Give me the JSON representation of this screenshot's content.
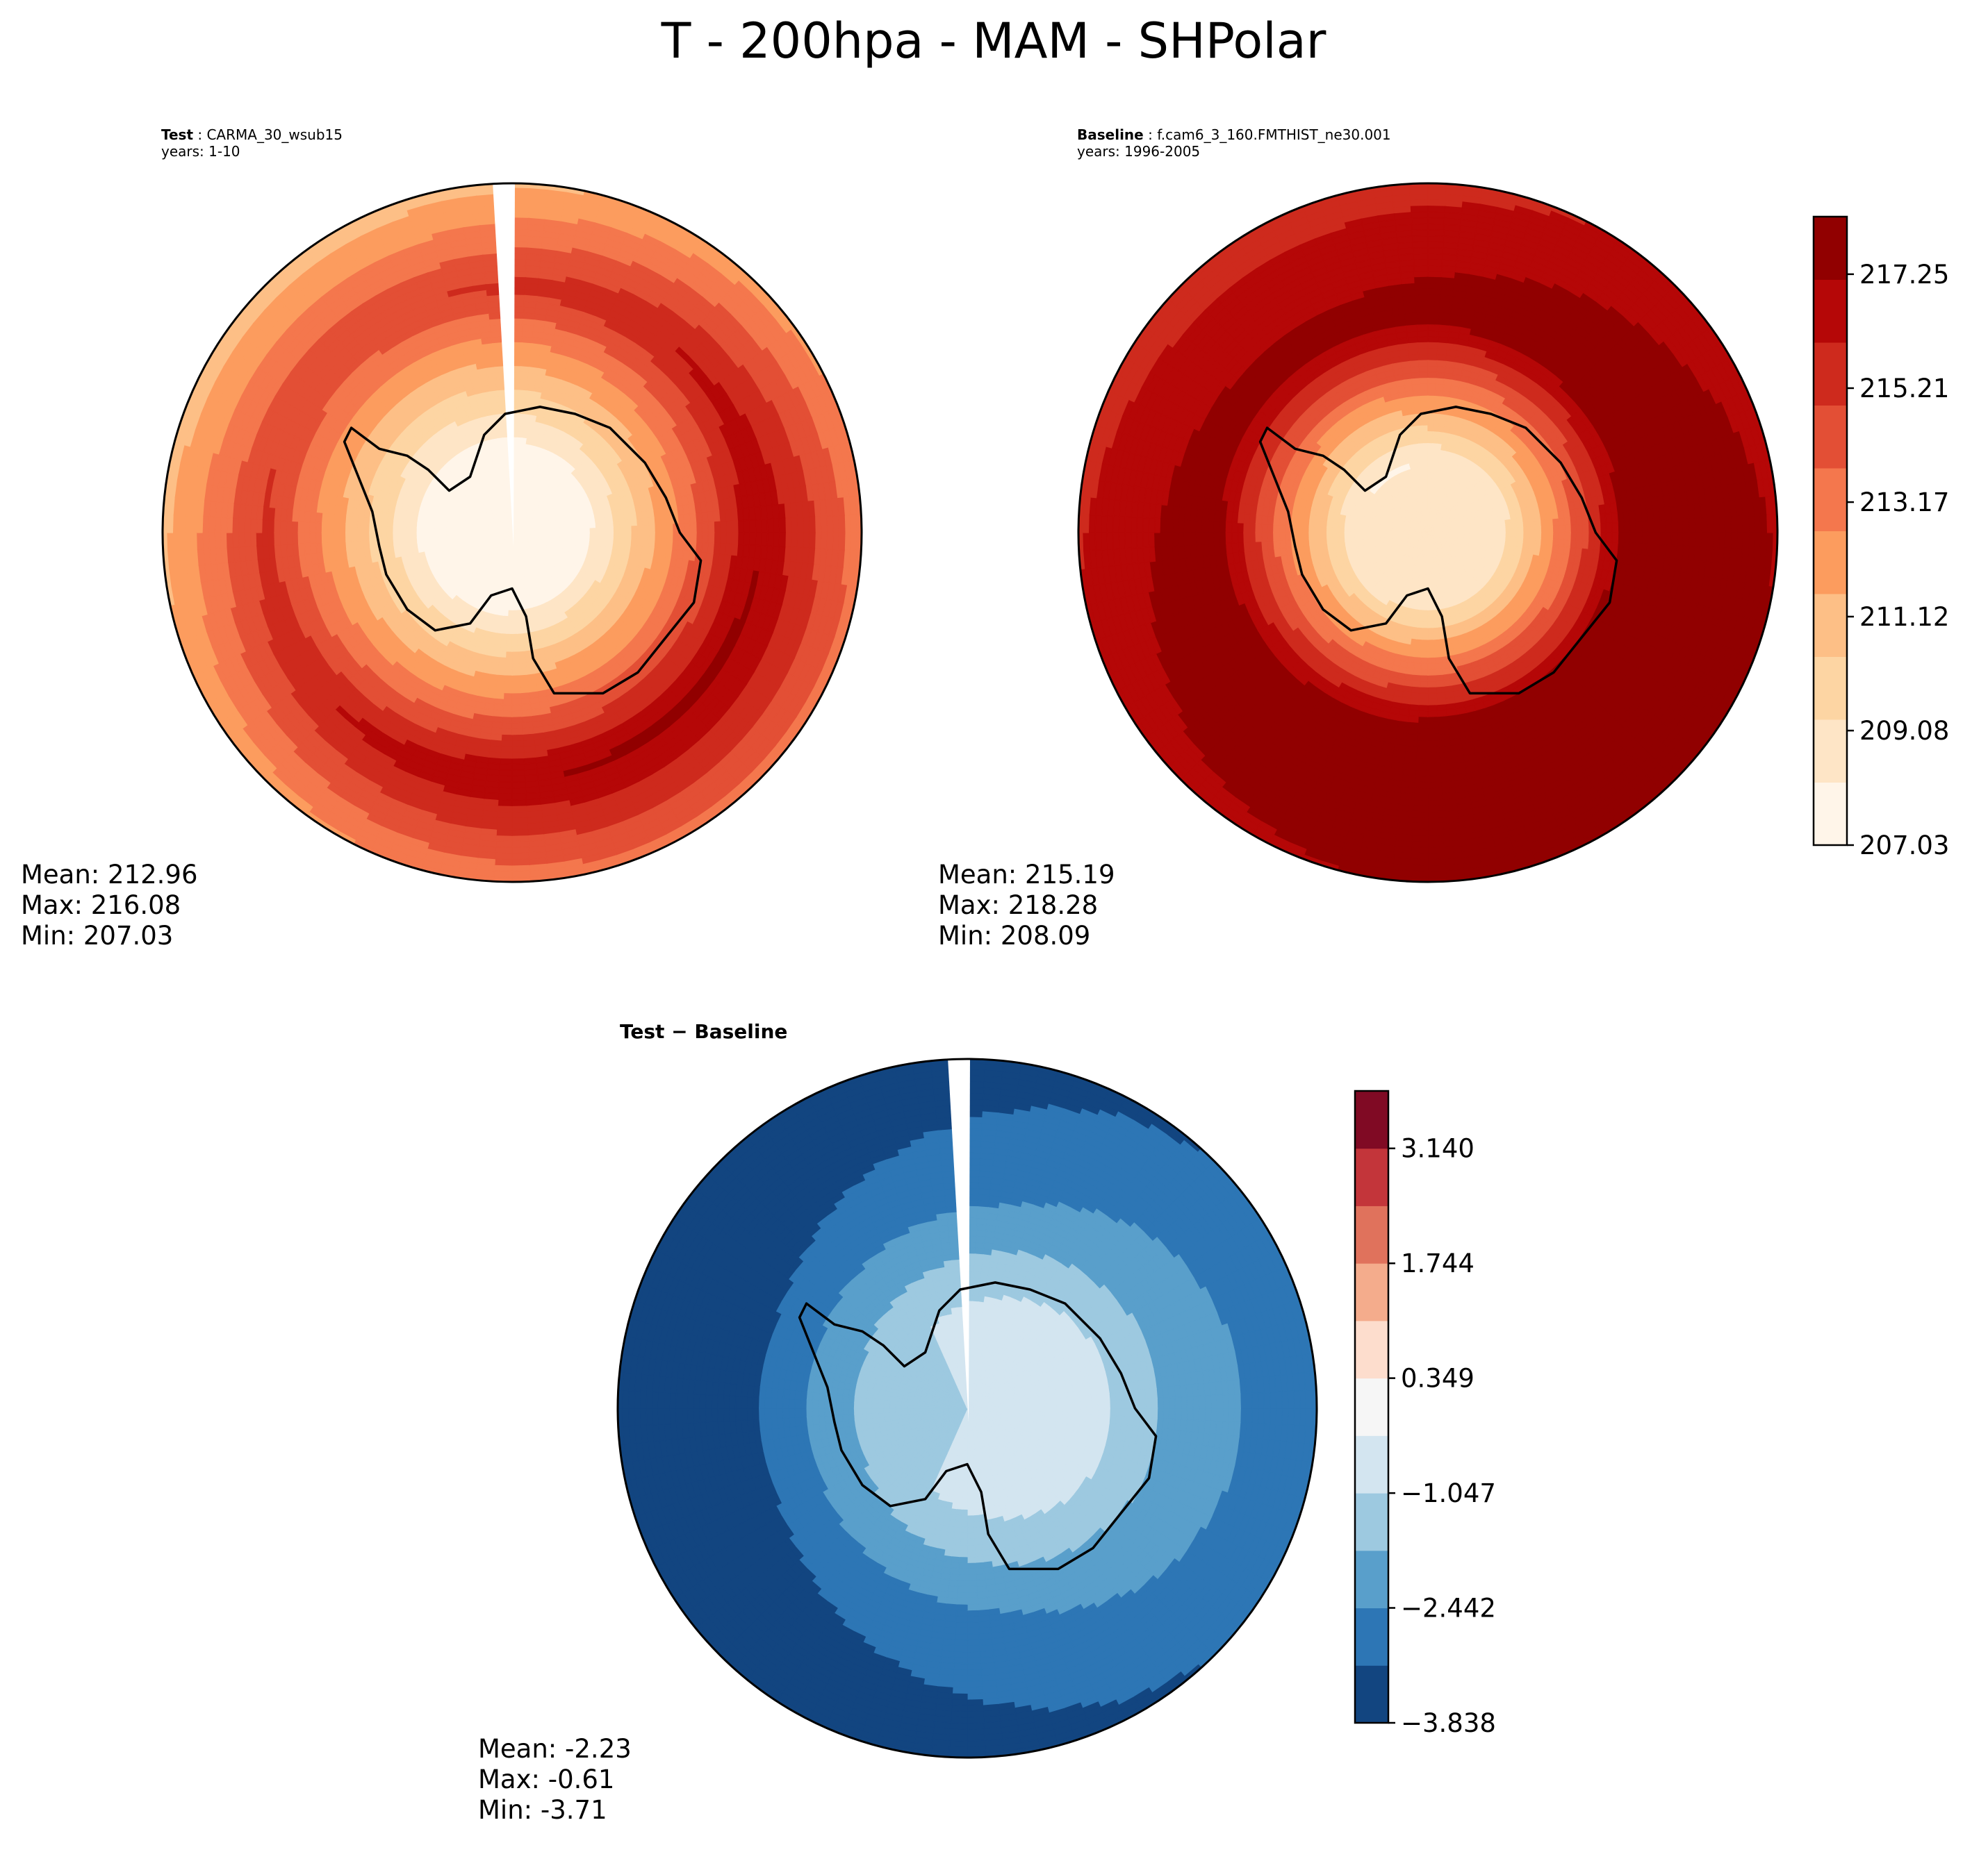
{
  "figure": {
    "title": "T - 200hpa - MAM - SHPolar"
  },
  "panels": {
    "test": {
      "label": "Test",
      "case": "CARMA_30_wsub15",
      "years": "years: 1-10",
      "stats": {
        "mean": "Mean: 212.96",
        "max": "Max: 216.08",
        "min": "Min: 207.03"
      }
    },
    "baseline": {
      "label": "Baseline",
      "case": "f.cam6_3_160.FMTHIST_ne30.001",
      "years": "years: 1996-2005",
      "stats": {
        "mean": "Mean: 215.19",
        "max": "Max: 218.28",
        "min": "Min: 208.09"
      }
    },
    "diff": {
      "title": "Test − Baseline",
      "stats": {
        "mean": "Mean: -2.23",
        "max": "Max: -0.61",
        "min": "Min: -3.71"
      }
    }
  },
  "chart_data": [
    {
      "type": "heatmap",
      "title": "Test : CARMA_30_wsub15",
      "projection": "south-polar-stereographic",
      "variable": "T",
      "level": "200hpa",
      "season": "MAM",
      "mean": 212.96,
      "max": 216.08,
      "min": 207.03,
      "colormap": "OrRd-like",
      "levels": [
        207.03,
        208.05,
        209.08,
        210.1,
        211.12,
        212.15,
        213.17,
        214.19,
        215.21,
        216.23,
        217.25,
        218.28
      ],
      "colorbar_ticks": [
        "207.03",
        "209.08",
        "211.12",
        "213.17",
        "215.21",
        "217.25"
      ],
      "note": "cold pole (~207) over Antarctic interior, warm ring (~215-216) near 60S"
    },
    {
      "type": "heatmap",
      "title": "Baseline : f.cam6_3_160.FMTHIST_ne30.001",
      "projection": "south-polar-stereographic",
      "mean": 215.19,
      "max": 218.28,
      "min": 208.09,
      "levels": [
        207.03,
        208.05,
        209.08,
        210.1,
        211.12,
        212.15,
        213.17,
        214.19,
        215.21,
        216.23,
        217.25,
        218.28
      ],
      "colorbar_ticks": [
        "207.03",
        "209.08",
        "211.12",
        "213.17",
        "215.21",
        "217.25"
      ],
      "colors": [
        "#fff5e9",
        "#fee5c6",
        "#fdd5a3",
        "#fdbf86",
        "#fc9c5e",
        "#f4774d",
        "#e34f35",
        "#ce2a1d",
        "#b50707",
        "#910000"
      ],
      "note": "cold pole (~208) over Antarctic interior, warm ring (~217-218) near 60S"
    },
    {
      "type": "heatmap",
      "title": "Test − Baseline",
      "projection": "south-polar-stereographic",
      "mean": -2.23,
      "max": -0.61,
      "min": -3.71,
      "colormap": "RdBu_r",
      "levels": [
        -3.838,
        -3.14,
        -2.442,
        -1.744,
        -1.047,
        -0.349,
        0.349,
        1.047,
        1.744,
        2.442,
        3.14,
        3.838
      ],
      "colorbar_ticks": [
        "−3.838",
        "−2.442",
        "−1.047",
        "0.349",
        "1.744",
        "3.140"
      ],
      "colors": [
        "#124580",
        "#2d76b5",
        "#599fcb",
        "#9dc9e0",
        "#d3e5f0",
        "#f6f6f6",
        "#fdddcd",
        "#f4ac8c",
        "#e0725c",
        "#c3353a",
        "#800a24"
      ],
      "note": "negative everywhere; weakest (~-0.7) over East Antarctica, strongest (~-3.7) near 60S"
    }
  ]
}
